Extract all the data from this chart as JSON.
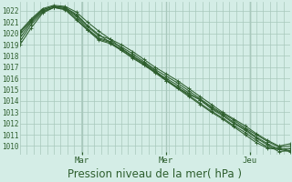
{
  "bg_color": "#d4ede6",
  "grid_color": "#a8c8bc",
  "line_color": "#2d5e2d",
  "ylabel_values": [
    1010,
    1011,
    1012,
    1013,
    1014,
    1015,
    1016,
    1017,
    1018,
    1019,
    1020,
    1021,
    1022
  ],
  "ylim": [
    1009.2,
    1022.8
  ],
  "xlim": [
    0.0,
    1.0
  ],
  "xlabel": "Pression niveau de la mer( hPa )",
  "xlabel_fontsize": 8.5,
  "xtick_labels": [
    "Mar",
    "Mer",
    "Jeu"
  ],
  "xtick_positions": [
    0.23,
    0.54,
    0.85
  ],
  "day_boundaries": [
    0.23,
    0.54,
    0.85
  ],
  "n_vgrid": 40,
  "series": [
    [
      1019.0,
      1020.5,
      1021.8,
      1022.3,
      1022.1,
      1021.2,
      1020.3,
      1019.4,
      1019.1,
      1018.5,
      1017.9,
      1017.2,
      1016.5,
      1015.8,
      1015.2,
      1014.6,
      1014.1,
      1013.3,
      1012.7,
      1012.0,
      1011.4,
      1010.7,
      1010.1,
      1009.5,
      1009.6
    ],
    [
      1019.3,
      1020.8,
      1021.9,
      1022.3,
      1022.2,
      1021.3,
      1020.3,
      1019.5,
      1019.2,
      1018.6,
      1018.0,
      1017.3,
      1016.6,
      1016.0,
      1015.4,
      1014.7,
      1014.1,
      1013.4,
      1012.8,
      1012.1,
      1011.5,
      1010.8,
      1010.2,
      1009.7,
      1009.8
    ],
    [
      1019.6,
      1021.0,
      1022.0,
      1022.3,
      1022.2,
      1021.5,
      1020.4,
      1019.6,
      1019.3,
      1018.8,
      1018.2,
      1017.5,
      1016.8,
      1016.2,
      1015.6,
      1014.9,
      1014.2,
      1013.5,
      1012.9,
      1012.3,
      1011.6,
      1011.0,
      1010.4,
      1009.9,
      1010.0
    ],
    [
      1019.9,
      1021.1,
      1022.1,
      1022.4,
      1022.3,
      1021.6,
      1020.6,
      1019.8,
      1019.5,
      1019.0,
      1018.4,
      1017.7,
      1017.0,
      1016.4,
      1015.8,
      1015.1,
      1014.4,
      1013.7,
      1013.0,
      1012.4,
      1011.8,
      1011.1,
      1010.5,
      1010.0,
      1010.2
    ],
    [
      1020.1,
      1021.2,
      1022.1,
      1022.4,
      1022.3,
      1021.7,
      1020.7,
      1019.9,
      1019.2,
      1018.5,
      1017.8,
      1017.2,
      1016.6,
      1015.8,
      1015.1,
      1014.4,
      1013.7,
      1013.0,
      1012.4,
      1011.7,
      1011.0,
      1010.3,
      1009.8,
      1009.7,
      1009.5
    ],
    [
      1020.2,
      1021.3,
      1022.2,
      1022.5,
      1022.4,
      1021.9,
      1021.0,
      1020.2,
      1019.5,
      1018.7,
      1018.0,
      1017.4,
      1016.7,
      1015.9,
      1015.2,
      1014.5,
      1013.8,
      1013.1,
      1012.5,
      1011.8,
      1011.2,
      1010.5,
      1009.9,
      1009.8,
      1009.6
    ]
  ]
}
